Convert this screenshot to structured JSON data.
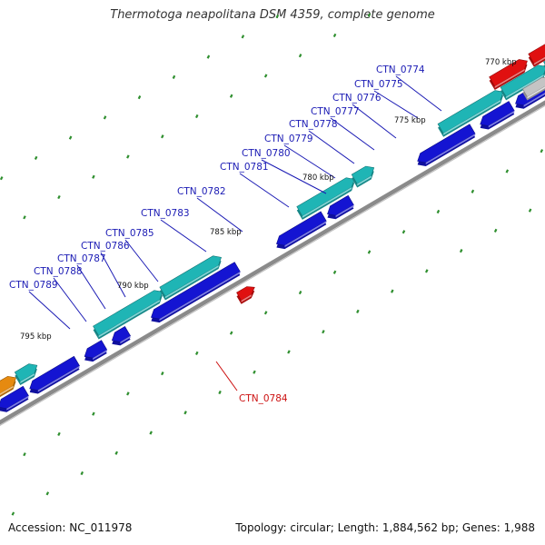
{
  "title": "Thermotoga neapolitana DSM 4359, complete genome",
  "accession": "Accession: NC_011978",
  "summary": "Topology: circular; Length: 1,884,562 bp; Genes: 1,988",
  "colors": {
    "backbone": "#8a8a8a",
    "tick": "#2f8f2f",
    "gene_fwd_cds": "#1fb5b5",
    "gene_rev_cds": "#1414d2",
    "highlight_gene": "#e01010",
    "other_gene": "#e68a10",
    "unknown_gene": "#c4c4c4",
    "label_default": "#1a1ab4",
    "label_highlight": "#cc1010"
  },
  "scale_labels": [
    "770 kbp",
    "775 kbp",
    "780 kbp",
    "785 kbp",
    "790 kbp",
    "795 kbp"
  ],
  "gene_labels": [
    "CTN_0774",
    "CTN_0775",
    "CTN_0776",
    "CTN_0777",
    "CTN_0778",
    "CTN_0779",
    "CTN_0780",
    "CTN_0781",
    "CTN_0782",
    "CTN_0783",
    "CTN_0784",
    "CTN_0785",
    "CTN_0786",
    "CTN_0787",
    "CTN_0788",
    "CTN_0789"
  ],
  "highlighted_gene": "CTN_0784"
}
